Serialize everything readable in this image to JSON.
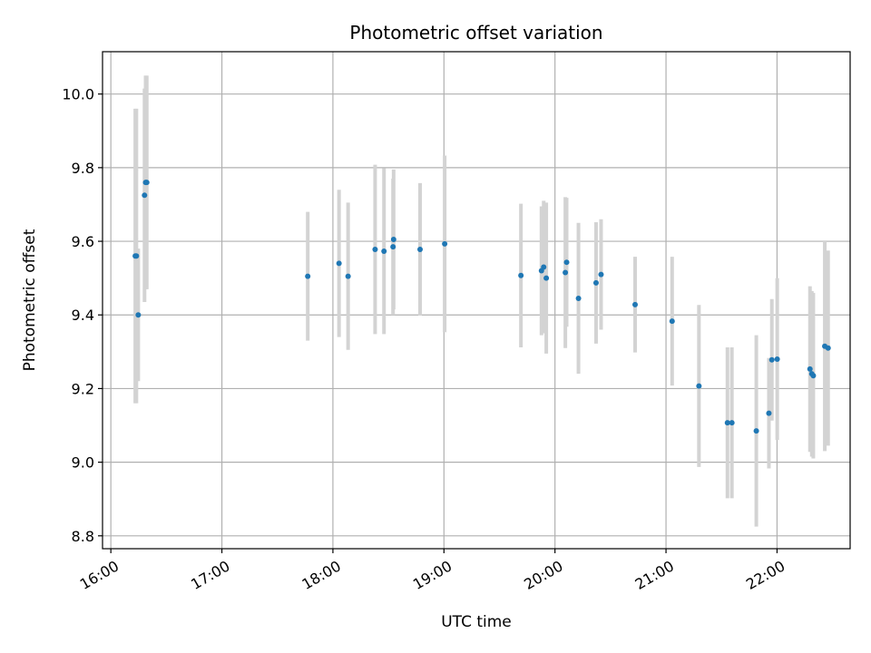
{
  "chart_data": {
    "type": "scatter",
    "title": "Photometric offset variation",
    "xlabel": "UTC time",
    "ylabel": "Photometric offset",
    "x_unit": "minutes",
    "xlim": [
      955.5,
      1359.5
    ],
    "ylim": [
      8.765,
      10.115
    ],
    "xticks": [
      {
        "value": 960,
        "label": "16:00"
      },
      {
        "value": 1020,
        "label": "17:00"
      },
      {
        "value": 1080,
        "label": "18:00"
      },
      {
        "value": 1140,
        "label": "19:00"
      },
      {
        "value": 1200,
        "label": "20:00"
      },
      {
        "value": 1260,
        "label": "21:00"
      },
      {
        "value": 1320,
        "label": "22:00"
      }
    ],
    "yticks": [
      {
        "value": 8.8,
        "label": "8.8"
      },
      {
        "value": 9.0,
        "label": "9.0"
      },
      {
        "value": 9.2,
        "label": "9.2"
      },
      {
        "value": 9.4,
        "label": "9.4"
      },
      {
        "value": 9.6,
        "label": "9.6"
      },
      {
        "value": 9.8,
        "label": "9.8"
      },
      {
        "value": 10.0,
        "label": "10.0"
      }
    ],
    "grid": true,
    "point_color": "#1f77b4",
    "errorbar_color": "#d3d3d3",
    "points": [
      {
        "x": 973.2,
        "y": 9.56,
        "err": 0.4
      },
      {
        "x": 973.8,
        "y": 9.56,
        "err": 0.4
      },
      {
        "x": 974.8,
        "y": 9.4,
        "err": 0.18
      },
      {
        "x": 978.2,
        "y": 9.725,
        "err": 0.29
      },
      {
        "x": 978.8,
        "y": 9.76,
        "err": 0.29
      },
      {
        "x": 979.4,
        "y": 9.76,
        "err": 0.29
      },
      {
        "x": 1066.4,
        "y": 9.505,
        "err": 0.175
      },
      {
        "x": 1083.3,
        "y": 9.54,
        "err": 0.2
      },
      {
        "x": 1088.2,
        "y": 9.505,
        "err": 0.2
      },
      {
        "x": 1102.8,
        "y": 9.578,
        "err": 0.23
      },
      {
        "x": 1107.6,
        "y": 9.573,
        "err": 0.225
      },
      {
        "x": 1112.5,
        "y": 9.585,
        "err": 0.185
      },
      {
        "x": 1112.8,
        "y": 9.605,
        "err": 0.19
      },
      {
        "x": 1127.1,
        "y": 9.578,
        "err": 0.18
      },
      {
        "x": 1140.4,
        "y": 9.593,
        "err": 0.24
      },
      {
        "x": 1181.6,
        "y": 9.507,
        "err": 0.195
      },
      {
        "x": 1192.7,
        "y": 9.52,
        "err": 0.175
      },
      {
        "x": 1193.9,
        "y": 9.53,
        "err": 0.18
      },
      {
        "x": 1195.3,
        "y": 9.5,
        "err": 0.205
      },
      {
        "x": 1205.6,
        "y": 9.515,
        "err": 0.205
      },
      {
        "x": 1206.3,
        "y": 9.543,
        "err": 0.175
      },
      {
        "x": 1212.7,
        "y": 9.445,
        "err": 0.205
      },
      {
        "x": 1222.2,
        "y": 9.487,
        "err": 0.165
      },
      {
        "x": 1224.9,
        "y": 9.51,
        "err": 0.15
      },
      {
        "x": 1243.3,
        "y": 9.428,
        "err": 0.13
      },
      {
        "x": 1263.3,
        "y": 9.383,
        "err": 0.175
      },
      {
        "x": 1277.8,
        "y": 9.207,
        "err": 0.22
      },
      {
        "x": 1293.2,
        "y": 9.107,
        "err": 0.205
      },
      {
        "x": 1295.6,
        "y": 9.107,
        "err": 0.205
      },
      {
        "x": 1308.8,
        "y": 9.085,
        "err": 0.26
      },
      {
        "x": 1315.6,
        "y": 9.133,
        "err": 0.15
      },
      {
        "x": 1317.2,
        "y": 9.278,
        "err": 0.165
      },
      {
        "x": 1320.1,
        "y": 9.28,
        "err": 0.22
      },
      {
        "x": 1337.8,
        "y": 9.253,
        "err": 0.225
      },
      {
        "x": 1338.8,
        "y": 9.24,
        "err": 0.225
      },
      {
        "x": 1339.6,
        "y": 9.235,
        "err": 0.225
      },
      {
        "x": 1345.8,
        "y": 9.315,
        "err": 0.285
      },
      {
        "x": 1347.6,
        "y": 9.31,
        "err": 0.265
      }
    ]
  }
}
